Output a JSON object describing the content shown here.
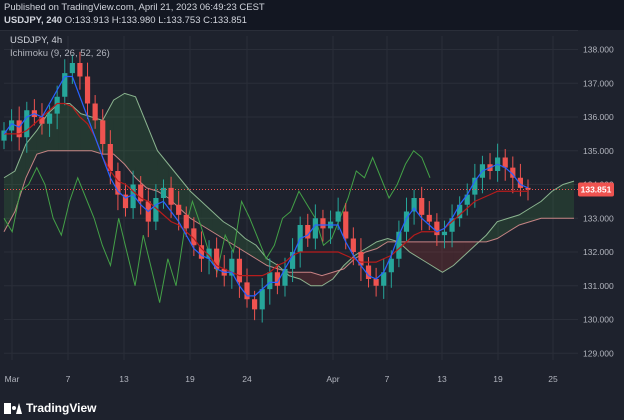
{
  "header": {
    "published": "Published on TradingView.com, April 21, 2023 06:49:23 CEST",
    "symbol_tf": "USDJPY, 240",
    "ohlc": "O:133.913 H:133.980 L:133.753 C:133.851"
  },
  "legend": {
    "symbol": "USDJPY, 4h",
    "indicator": "Ichimoku (9, 26, 52, 26)"
  },
  "footer": {
    "brand": "TradingView"
  },
  "colors": {
    "background": "#1e222d",
    "grid": "#2a2e39",
    "candle_up": "#26a69a",
    "candle_down": "#ef5350",
    "tenkan": "#2962ff",
    "kijun": "#b71c1c",
    "chikou": "#43a047",
    "span_a": "#a5d6a7",
    "span_b": "#ef9a9a",
    "last_price_label": "#ef5350"
  },
  "chart_data": {
    "type": "candlestick",
    "symbol": "USDJPY",
    "timeframe": "4h",
    "indicator": "Ichimoku (9, 26, 52, 26)",
    "last_price": 133.851,
    "last_price_label": "133.851",
    "ylim": [
      128.8,
      138.4
    ],
    "y_ticks": [
      138.0,
      137.0,
      136.0,
      135.0,
      134.0,
      133.0,
      132.0,
      131.0,
      130.0,
      129.0
    ],
    "y_tick_labels": [
      "138.000",
      "137.000",
      "136.000",
      "135.000",
      "134.000",
      "133.000",
      "132.000",
      "131.000",
      "130.000",
      "129.000"
    ],
    "x_tick_labels": [
      "Mar",
      "7",
      "13",
      "19",
      "24",
      "Apr",
      "7",
      "13",
      "19",
      "25"
    ],
    "grid": true,
    "series": [
      {
        "name": "price_close",
        "values": [
          135.6,
          135.9,
          135.4,
          136.2,
          136.0,
          135.8,
          136.1,
          136.6,
          137.3,
          137.6,
          137.2,
          136.4,
          135.9,
          135.2,
          134.4,
          133.7,
          133.3,
          134.0,
          133.5,
          132.9,
          133.6,
          133.9,
          133.4,
          133.1,
          132.7,
          132.2,
          131.8,
          132.1,
          131.5,
          131.3,
          131.8,
          131.1,
          130.6,
          130.3,
          130.9,
          131.4,
          131.0,
          131.5,
          132.0,
          132.8,
          132.4,
          133.0,
          132.7,
          132.9,
          133.2,
          132.4,
          132.0,
          131.6,
          131.2,
          131.0,
          131.4,
          131.8,
          132.6,
          133.2,
          133.6,
          133.1,
          132.9,
          132.5,
          132.6,
          133.0,
          133.4,
          133.7,
          134.2,
          134.6,
          134.4,
          134.8,
          134.5,
          134.2,
          133.9,
          133.85
        ]
      },
      {
        "name": "tenkan",
        "values": [
          135.5,
          135.8,
          135.7,
          136.0,
          136.1,
          136.0,
          136.4,
          136.8,
          137.2,
          137.2,
          136.6,
          136.0,
          135.4,
          134.8,
          134.2,
          133.8,
          133.6,
          133.7,
          133.4,
          133.2,
          133.4,
          133.5,
          133.2,
          132.9,
          132.5,
          132.1,
          131.9,
          131.8,
          131.5,
          131.4,
          131.4,
          131.0,
          130.7,
          130.7,
          130.9,
          131.1,
          131.1,
          131.5,
          131.9,
          132.4,
          132.5,
          132.8,
          132.8,
          132.8,
          132.8,
          132.3,
          131.9,
          131.6,
          131.3,
          131.2,
          131.4,
          131.9,
          132.5,
          133.0,
          133.3,
          133.0,
          132.8,
          132.6,
          132.7,
          133.0,
          133.4,
          133.7,
          134.1,
          134.4,
          134.5,
          134.6,
          134.5,
          134.3,
          134.0,
          133.9
        ]
      },
      {
        "name": "kijun",
        "values": [
          135.5,
          135.5,
          135.5,
          135.6,
          135.8,
          136.0,
          136.2,
          136.4,
          136.4,
          136.3,
          136.0,
          135.8,
          135.4,
          134.8,
          134.4,
          134.1,
          134.0,
          133.8,
          133.6,
          133.5,
          133.3,
          133.1,
          132.9,
          132.8,
          132.6,
          132.4,
          132.1,
          131.9,
          131.6,
          131.5,
          131.4,
          131.3,
          131.3,
          131.3,
          131.3,
          131.4,
          131.6,
          131.7,
          131.9,
          132.0,
          132.0,
          132.0,
          132.0,
          132.0,
          132.0,
          131.9,
          131.8,
          131.7,
          131.7,
          131.7,
          131.8,
          131.9,
          132.1,
          132.3,
          132.5,
          132.6,
          132.6,
          132.6,
          132.7,
          132.9,
          133.1,
          133.3,
          133.5,
          133.6,
          133.7,
          133.8,
          133.8,
          133.8,
          133.8,
          133.8
        ]
      },
      {
        "name": "chikou",
        "values": [
          133.0,
          132.6,
          133.8,
          134.0,
          134.5,
          134.0,
          133.0,
          132.5,
          133.5,
          134.2,
          133.6,
          133.0,
          132.2,
          131.6,
          133.0,
          132.0,
          131.0,
          132.5,
          131.5,
          130.5,
          131.8,
          131.0,
          132.6,
          133.5,
          132.8,
          132.0,
          131.4,
          132.5,
          132.0,
          133.5,
          133.0,
          132.4,
          131.8,
          132.2,
          133.0,
          133.2,
          133.8,
          133.4,
          133.0,
          132.2,
          132.4,
          133.0,
          133.6,
          134.4,
          134.2,
          134.8,
          134.2,
          133.6,
          134.0,
          134.6,
          135.0,
          134.8,
          134.2
        ]
      },
      {
        "name": "span_a",
        "values": [
          134.2,
          134.4,
          135.2,
          135.6,
          136.1,
          136.4,
          136.4,
          136.1,
          136.0,
          135.9,
          136.5,
          136.7,
          136.6,
          135.8,
          135.0,
          134.6,
          134.2,
          133.8,
          133.5,
          133.2,
          132.9,
          132.7,
          132.4,
          132.2,
          131.8,
          131.6,
          131.3,
          131.2,
          131.0,
          131.0,
          131.2,
          131.6,
          131.9,
          132.1,
          132.3,
          132.4,
          132.3,
          132.0,
          131.8,
          131.6,
          131.4,
          131.6,
          131.9,
          132.2,
          132.5,
          132.9,
          133.0,
          133.1,
          133.3,
          133.5,
          133.8,
          134.0,
          134.1
        ]
      },
      {
        "name": "span_b",
        "values": [
          132.6,
          133.2,
          134.2,
          134.9,
          135.0,
          135.0,
          135.0,
          135.0,
          135.0,
          134.9,
          134.9,
          134.6,
          134.2,
          133.9,
          133.8,
          133.6,
          133.3,
          133.0,
          132.8,
          132.6,
          132.4,
          132.2,
          132.0,
          131.8,
          131.6,
          131.5,
          131.4,
          131.4,
          131.4,
          131.3,
          131.4,
          131.5,
          131.8,
          132.0,
          132.1,
          132.3,
          132.3,
          132.3,
          132.3,
          132.3,
          132.3,
          132.3,
          132.3,
          132.3,
          132.3,
          132.4,
          132.6,
          132.8,
          132.9,
          133.0,
          133.0,
          133.0,
          133.0
        ]
      }
    ]
  }
}
